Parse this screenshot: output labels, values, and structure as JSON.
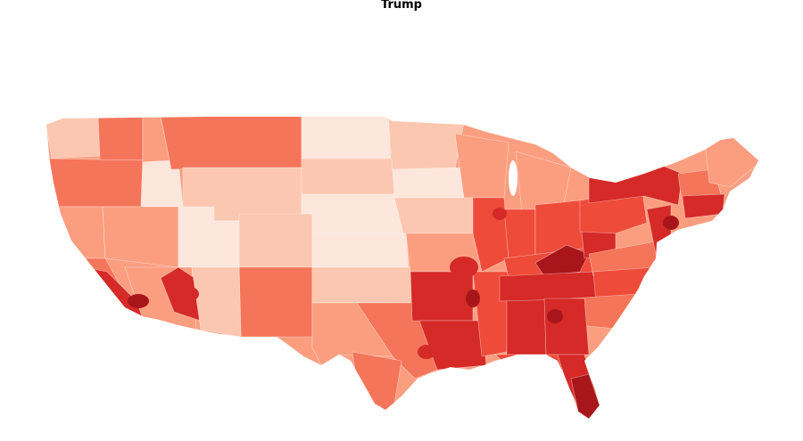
{
  "title": "Trump",
  "palette": {
    "lightest": "#fde6db",
    "light": "#fcc7b0",
    "mid_light": "#fb9e80",
    "mid": "#f5755a",
    "mid_dark": "#ef4b3a",
    "dark": "#d52a27",
    "darkest": "#a8161c"
  }
}
